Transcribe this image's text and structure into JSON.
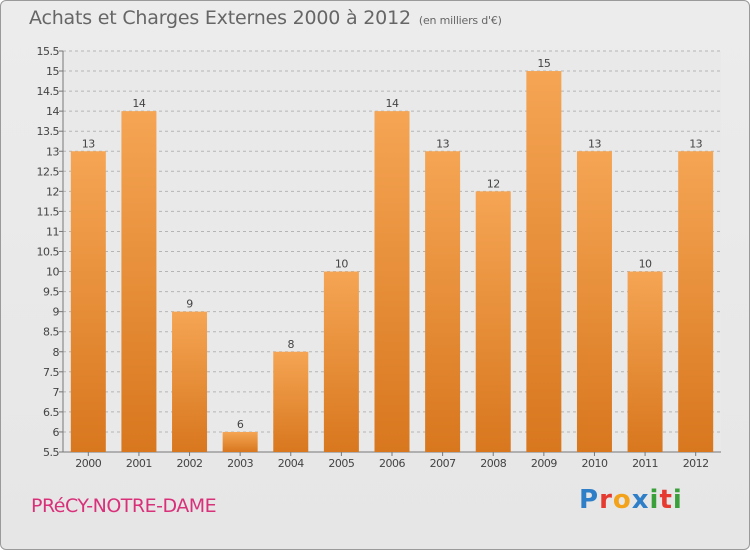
{
  "header": {
    "title": "Achats et Charges Externes 2000 à 2012",
    "subtitle": "(en milliers d'€)"
  },
  "footer": {
    "commune": "PRéCY-NOTRE-DAME",
    "logo_text": "Proxiti",
    "logo_colors": [
      "#2f7fc8",
      "#e6392f",
      "#f2a31b",
      "#2f7fc8",
      "#3aa03a",
      "#e6392f",
      "#3aa03a"
    ]
  },
  "colors": {
    "bar_top": "#f5a554",
    "bar_bottom": "#d8771e",
    "grid": "#b5b5b5",
    "axis_text": "#444444"
  },
  "chart_data": {
    "type": "bar",
    "title": "Achats et Charges Externes 2000 à 2012",
    "subtitle": "(en milliers d'€)",
    "categories": [
      "2000",
      "2001",
      "2002",
      "2003",
      "2004",
      "2005",
      "2006",
      "2007",
      "2008",
      "2009",
      "2010",
      "2011",
      "2012"
    ],
    "values": [
      13,
      14,
      9,
      6,
      8,
      10,
      14,
      13,
      12,
      15,
      13,
      10,
      13
    ],
    "value_labels": [
      "13",
      "14",
      "9",
      "6",
      "8",
      "10",
      "14",
      "13",
      "12",
      "15",
      "13",
      "10",
      "13"
    ],
    "ylim": [
      5.5,
      15.5
    ],
    "yticks": [
      "5.5",
      "6",
      "6.5",
      "7",
      "7.5",
      "8",
      "8.5",
      "9",
      "9.5",
      "10",
      "10.5",
      "11",
      "11.5",
      "12",
      "12.5",
      "13",
      "13.5",
      "14",
      "14.5",
      "15",
      "15.5"
    ],
    "grid": true
  }
}
